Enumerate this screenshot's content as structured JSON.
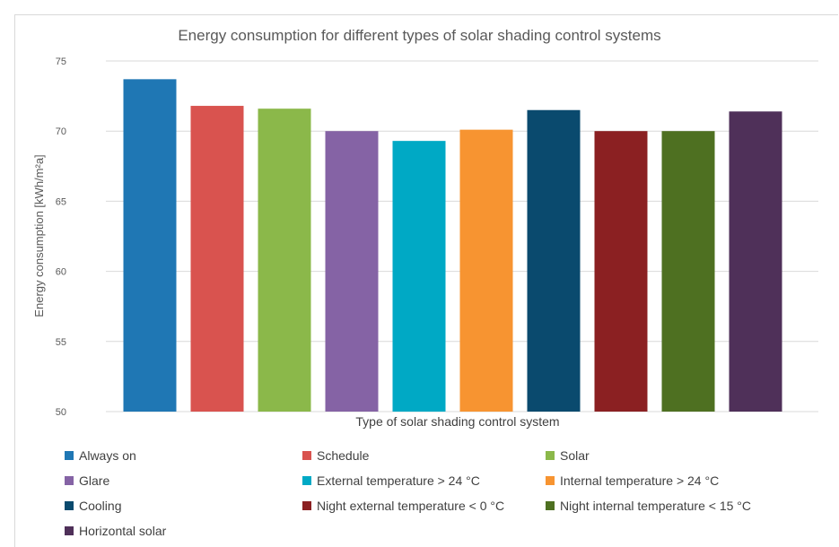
{
  "chart_data": {
    "type": "bar",
    "title": "Energy consumption for different types of solar shading control systems",
    "xlabel": "Type of solar shading control system",
    "ylabel": "Energy consumption [kWh/m²a]",
    "ylim": [
      50,
      75
    ],
    "yticks": [
      50,
      55,
      60,
      65,
      70,
      75
    ],
    "grid": true,
    "legend_position": "bottom",
    "categories": [
      "Always on",
      "Schedule",
      "Solar",
      "Glare",
      "External temperature > 24 °C",
      "Internal temperature > 24 °C",
      "Cooling",
      "Night external temperature < 0 °C",
      "Night internal temperature < 15 °C",
      "Horizontal solar"
    ],
    "values": [
      73.7,
      71.8,
      71.6,
      70.0,
      69.3,
      70.1,
      71.5,
      70.0,
      70.0,
      71.4
    ],
    "colors": [
      "#1f77b4",
      "#d9534f",
      "#8bb84a",
      "#8563a5",
      "#00a9c5",
      "#f79431",
      "#0a4a6e",
      "#8b2022",
      "#4e7021",
      "#4f3059"
    ]
  }
}
